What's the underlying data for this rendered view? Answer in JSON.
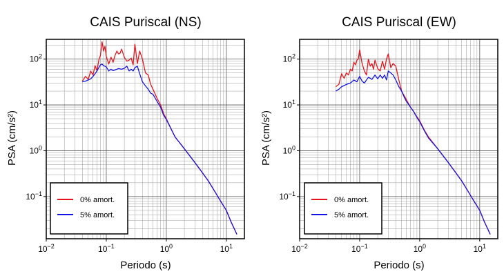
{
  "chart_data": [
    {
      "type": "line",
      "title": "CAIS Puriscal (NS)",
      "xlabel": "Periodo (s)",
      "ylabel": "PSA (cm/s²)",
      "x_scale": "log",
      "y_scale": "log",
      "xlim": [
        0.01,
        20
      ],
      "ylim": [
        0.012,
        270
      ],
      "x_ticks": [
        {
          "value": 0.01,
          "mantissa": "10",
          "exp": "−2"
        },
        {
          "value": 0.1,
          "mantissa": "10",
          "exp": "−1"
        },
        {
          "value": 1,
          "mantissa": "10",
          "exp": "0"
        },
        {
          "value": 10,
          "mantissa": "10",
          "exp": "1"
        }
      ],
      "y_ticks": [
        {
          "value": 0.1,
          "mantissa": "10",
          "exp": "−1"
        },
        {
          "value": 1,
          "mantissa": "10",
          "exp": "0"
        },
        {
          "value": 10,
          "mantissa": "10",
          "exp": "1"
        },
        {
          "value": 100,
          "mantissa": "10",
          "exp": "2"
        }
      ],
      "grid": true,
      "legend_position": "bottom-left",
      "series": [
        {
          "name": "0% amort.",
          "color": "#e8141c",
          "x": [
            0.04,
            0.045,
            0.05,
            0.055,
            0.06,
            0.065,
            0.07,
            0.075,
            0.08,
            0.085,
            0.09,
            0.095,
            0.1,
            0.11,
            0.12,
            0.13,
            0.14,
            0.15,
            0.16,
            0.17,
            0.18,
            0.2,
            0.22,
            0.24,
            0.26,
            0.28,
            0.3,
            0.33,
            0.36,
            0.4,
            0.45,
            0.5,
            0.55,
            0.6,
            0.7,
            0.8,
            0.9,
            1.0,
            1.2,
            1.4,
            1.6,
            2,
            3,
            4,
            5,
            6,
            8,
            10,
            12,
            15
          ],
          "y": [
            33,
            42,
            36,
            55,
            45,
            72,
            55,
            95,
            120,
            240,
            150,
            190,
            115,
            78,
            110,
            85,
            120,
            150,
            130,
            135,
            165,
            110,
            90,
            95,
            105,
            75,
            210,
            80,
            150,
            100,
            50,
            45,
            28,
            22,
            14,
            10,
            6.5,
            5,
            3,
            2.0,
            1.6,
            1.1,
            0.55,
            0.33,
            0.22,
            0.15,
            0.08,
            0.05,
            0.028,
            0.015
          ]
        },
        {
          "name": "5% amort.",
          "color": "#1414e6",
          "x": [
            0.04,
            0.045,
            0.05,
            0.055,
            0.06,
            0.065,
            0.07,
            0.075,
            0.08,
            0.085,
            0.09,
            0.1,
            0.11,
            0.12,
            0.13,
            0.14,
            0.15,
            0.16,
            0.18,
            0.2,
            0.22,
            0.24,
            0.26,
            0.28,
            0.3,
            0.33,
            0.36,
            0.4,
            0.45,
            0.5,
            0.55,
            0.6,
            0.7,
            0.8,
            0.9,
            1.0,
            1.2,
            1.4,
            1.6,
            2,
            3,
            4,
            5,
            6,
            8,
            10,
            12,
            15
          ],
          "y": [
            32,
            33,
            35,
            37,
            42,
            48,
            55,
            65,
            75,
            78,
            72,
            68,
            55,
            60,
            56,
            58,
            60,
            62,
            60,
            63,
            70,
            55,
            60,
            55,
            65,
            70,
            48,
            32,
            26,
            22,
            18,
            17,
            12,
            9,
            6,
            4.8,
            3,
            2.0,
            1.6,
            1.1,
            0.55,
            0.33,
            0.22,
            0.15,
            0.08,
            0.05,
            0.028,
            0.015
          ]
        }
      ]
    },
    {
      "type": "line",
      "title": "CAIS Puriscal (EW)",
      "xlabel": "Periodo (s)",
      "ylabel": "PSA (cm/s²)",
      "x_scale": "log",
      "y_scale": "log",
      "xlim": [
        0.01,
        20
      ],
      "ylim": [
        0.012,
        270
      ],
      "x_ticks": [
        {
          "value": 0.01,
          "mantissa": "10",
          "exp": "−2"
        },
        {
          "value": 0.1,
          "mantissa": "10",
          "exp": "−1"
        },
        {
          "value": 1,
          "mantissa": "10",
          "exp": "0"
        },
        {
          "value": 10,
          "mantissa": "10",
          "exp": "1"
        }
      ],
      "y_ticks": [
        {
          "value": 0.1,
          "mantissa": "10",
          "exp": "−1"
        },
        {
          "value": 1,
          "mantissa": "10",
          "exp": "0"
        },
        {
          "value": 10,
          "mantissa": "10",
          "exp": "1"
        },
        {
          "value": 100,
          "mantissa": "10",
          "exp": "2"
        }
      ],
      "grid": true,
      "legend_position": "bottom-left",
      "series": [
        {
          "name": "0% amort.",
          "color": "#e8141c",
          "x": [
            0.04,
            0.045,
            0.05,
            0.055,
            0.06,
            0.065,
            0.07,
            0.075,
            0.08,
            0.085,
            0.09,
            0.095,
            0.1,
            0.11,
            0.12,
            0.13,
            0.14,
            0.15,
            0.16,
            0.17,
            0.18,
            0.2,
            0.22,
            0.24,
            0.26,
            0.28,
            0.3,
            0.33,
            0.36,
            0.4,
            0.45,
            0.5,
            0.55,
            0.6,
            0.7,
            0.8,
            0.9,
            1.0,
            1.2,
            1.4,
            2,
            3,
            4,
            5,
            6,
            8,
            10,
            12,
            15
          ],
          "y": [
            25,
            28,
            48,
            38,
            50,
            45,
            60,
            55,
            85,
            75,
            95,
            100,
            160,
            80,
            55,
            45,
            100,
            70,
            80,
            60,
            95,
            62,
            55,
            90,
            60,
            100,
            130,
            65,
            80,
            70,
            35,
            20,
            16,
            13,
            9,
            7,
            5.5,
            4.5,
            2.8,
            2.0,
            1.1,
            0.55,
            0.33,
            0.22,
            0.15,
            0.08,
            0.05,
            0.028,
            0.015
          ]
        },
        {
          "name": "5% amort.",
          "color": "#1414e6",
          "x": [
            0.04,
            0.045,
            0.05,
            0.06,
            0.07,
            0.08,
            0.09,
            0.1,
            0.11,
            0.12,
            0.13,
            0.14,
            0.15,
            0.16,
            0.18,
            0.2,
            0.22,
            0.24,
            0.26,
            0.28,
            0.3,
            0.33,
            0.36,
            0.4,
            0.45,
            0.5,
            0.55,
            0.6,
            0.7,
            0.8,
            0.9,
            1.0,
            1.2,
            1.4,
            2,
            3,
            4,
            5,
            6,
            8,
            10,
            12,
            15
          ],
          "y": [
            20,
            22,
            25,
            28,
            30,
            35,
            32,
            42,
            33,
            30,
            35,
            40,
            38,
            36,
            45,
            37,
            45,
            38,
            45,
            35,
            55,
            50,
            45,
            35,
            25,
            20,
            15,
            12,
            9,
            7,
            5.3,
            4.3,
            2.7,
            1.9,
            1.1,
            0.55,
            0.33,
            0.22,
            0.15,
            0.08,
            0.05,
            0.028,
            0.015
          ]
        }
      ]
    }
  ]
}
